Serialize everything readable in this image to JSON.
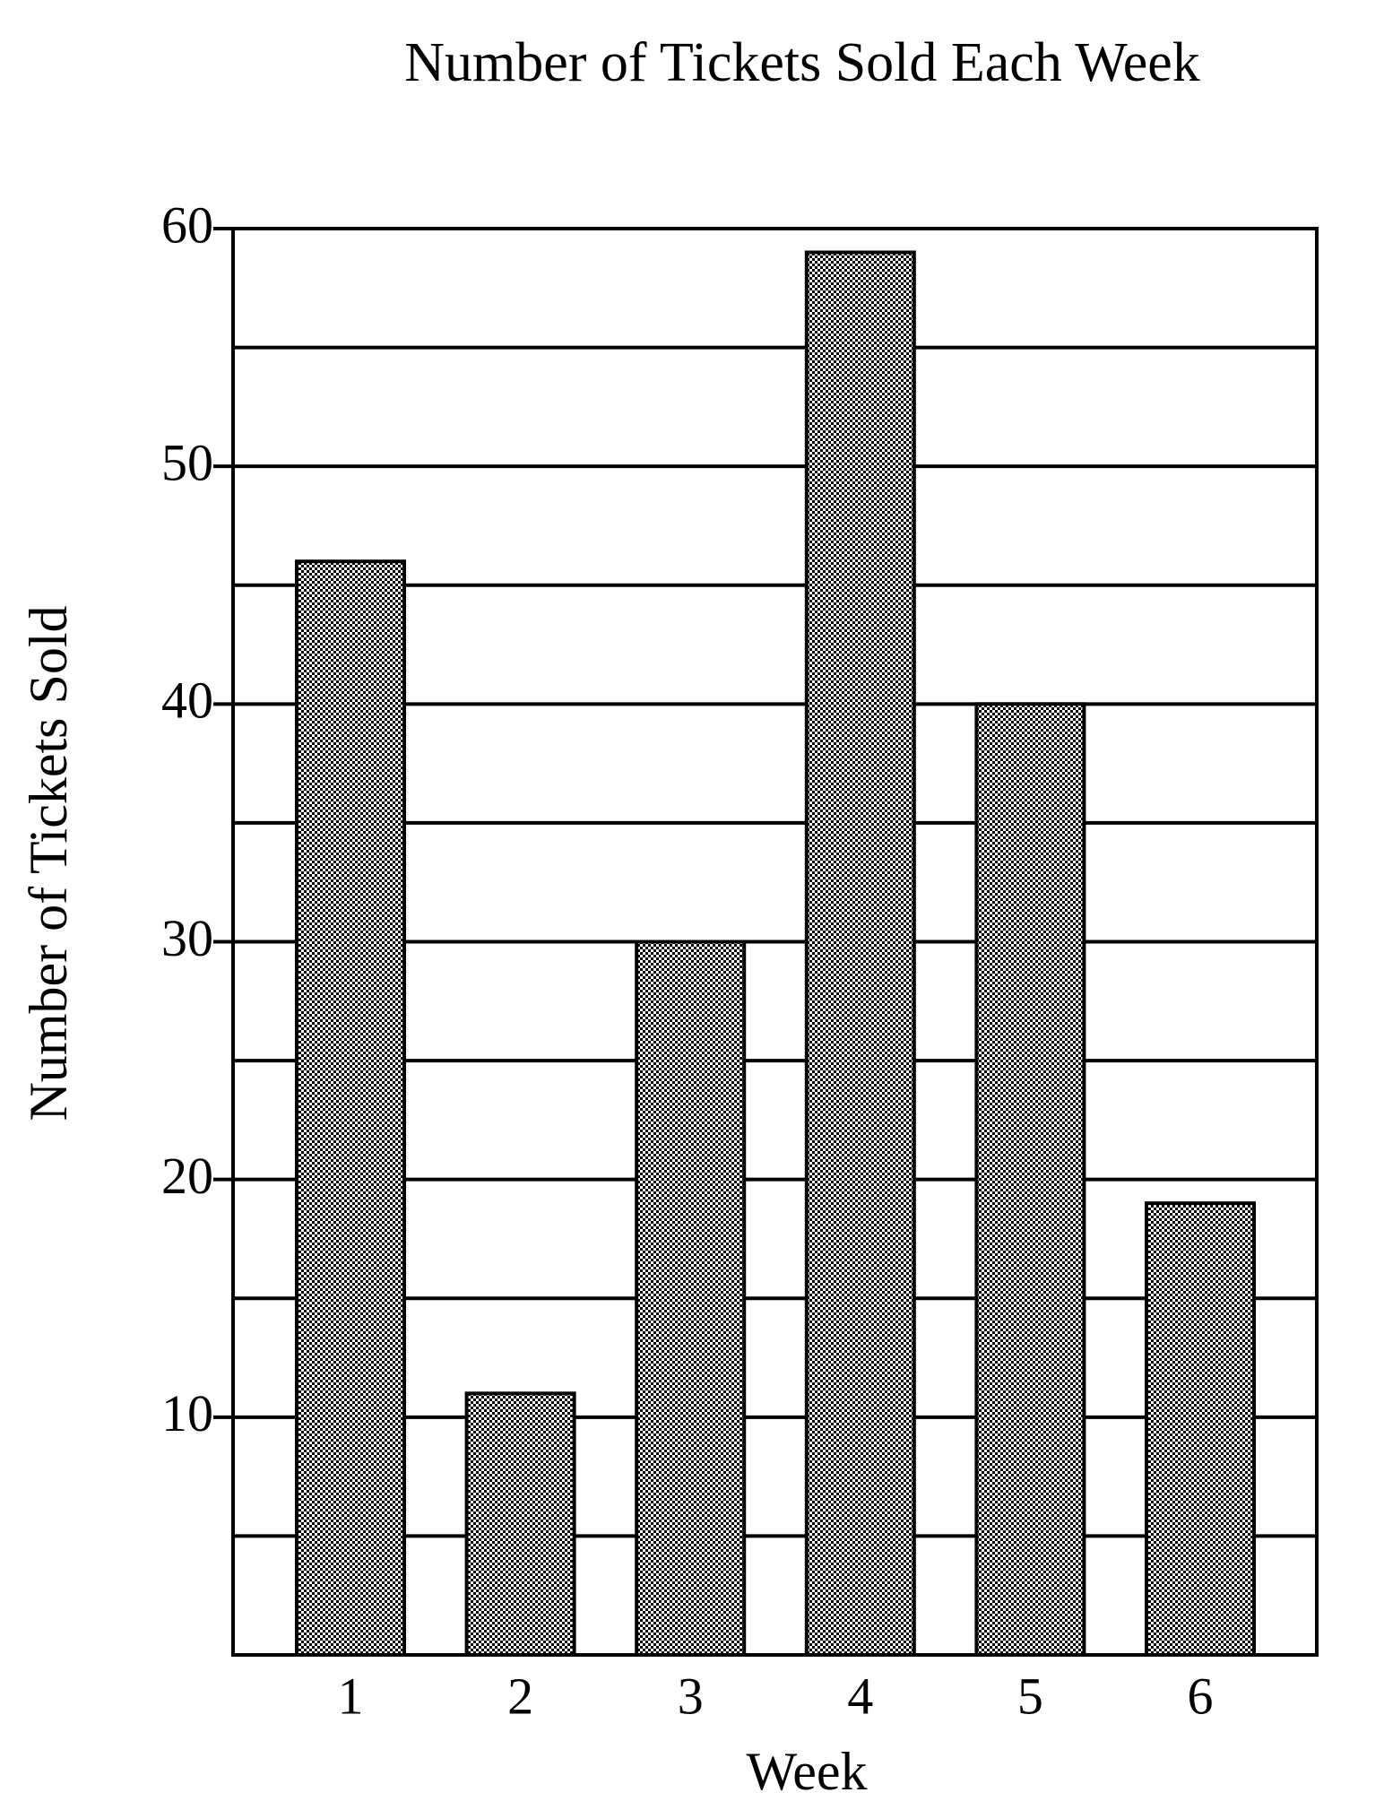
{
  "chart_data": {
    "type": "bar",
    "title": "Number of Tickets Sold Each Week",
    "x_label": "Week",
    "y_label": "Number of Tickets Sold",
    "categories": [
      "1",
      "2",
      "3",
      "4",
      "5",
      "6"
    ],
    "values": [
      46,
      11,
      30,
      59,
      40,
      19
    ],
    "color": "#000000",
    "ylim": [
      0,
      60
    ],
    "yticks": [
      10,
      20,
      30,
      40,
      50,
      60
    ],
    "y_minor_grid": [
      5,
      15,
      25,
      35,
      45,
      55
    ],
    "grid": true
  }
}
